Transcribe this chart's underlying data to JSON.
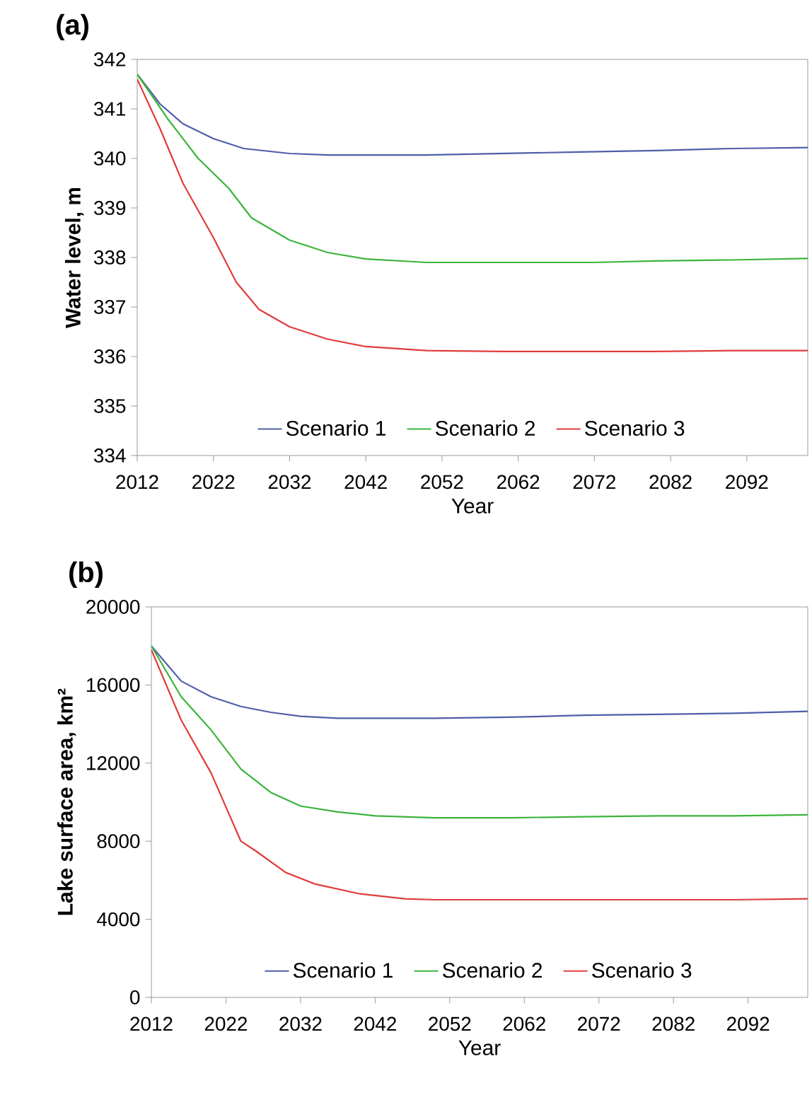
{
  "chart_data": [
    {
      "type": "line",
      "title": "(a)",
      "xlabel": "Year",
      "ylabel": "Water level, m",
      "xlim": [
        2012,
        2100
      ],
      "xticks": [
        2012,
        2022,
        2032,
        2042,
        2052,
        2062,
        2072,
        2082,
        2092
      ],
      "ylim": [
        334,
        342
      ],
      "yticks": [
        334,
        335,
        336,
        337,
        338,
        339,
        340,
        341,
        342
      ],
      "legend": "bottom",
      "grid": false,
      "series": [
        {
          "name": "Scenario 1",
          "color": "#4f5ea8",
          "x": [
            2012,
            2015,
            2018,
            2022,
            2026,
            2032,
            2037,
            2050,
            2060,
            2070,
            2080,
            2090,
            2100
          ],
          "values": [
            341.7,
            341.1,
            340.7,
            340.4,
            340.2,
            340.1,
            340.07,
            340.07,
            340.1,
            340.13,
            340.16,
            340.2,
            340.22
          ]
        },
        {
          "name": "Scenario 2",
          "color": "#3cb43c",
          "x": [
            2012,
            2016,
            2020,
            2024,
            2027,
            2032,
            2037,
            2042,
            2050,
            2060,
            2072,
            2080,
            2090,
            2100
          ],
          "values": [
            341.7,
            340.8,
            340.0,
            339.4,
            338.8,
            338.35,
            338.1,
            337.97,
            337.9,
            337.9,
            337.9,
            337.93,
            337.95,
            337.98
          ]
        },
        {
          "name": "Scenario 3",
          "color": "#e03c3c",
          "x": [
            2012,
            2015,
            2018,
            2022,
            2025,
            2028,
            2032,
            2037,
            2042,
            2050,
            2060,
            2080,
            2090,
            2100
          ],
          "values": [
            341.6,
            340.6,
            339.5,
            338.4,
            337.5,
            336.95,
            336.6,
            336.35,
            336.2,
            336.12,
            336.1,
            336.1,
            336.12,
            336.12
          ]
        }
      ]
    },
    {
      "type": "line",
      "title": "(b)",
      "xlabel": "Year",
      "ylabel": "Lake surface area, km²",
      "xlim": [
        2012,
        2100
      ],
      "xticks": [
        2012,
        2022,
        2032,
        2042,
        2052,
        2062,
        2072,
        2082,
        2092
      ],
      "ylim": [
        0,
        20000
      ],
      "yticks": [
        0,
        4000,
        8000,
        12000,
        16000,
        20000
      ],
      "legend": "bottom",
      "grid": false,
      "series": [
        {
          "name": "Scenario 1",
          "color": "#4f5ea8",
          "x": [
            2012,
            2016,
            2020,
            2024,
            2028,
            2032,
            2037,
            2050,
            2060,
            2070,
            2080,
            2090,
            2100
          ],
          "values": [
            18000,
            16200,
            15400,
            14900,
            14600,
            14400,
            14300,
            14300,
            14350,
            14450,
            14500,
            14550,
            14650
          ]
        },
        {
          "name": "Scenario 2",
          "color": "#3cb43c",
          "x": [
            2012,
            2016,
            2020,
            2024,
            2028,
            2032,
            2037,
            2042,
            2050,
            2060,
            2070,
            2080,
            2090,
            2100
          ],
          "values": [
            18000,
            15400,
            13700,
            11700,
            10500,
            9800,
            9500,
            9300,
            9200,
            9200,
            9250,
            9300,
            9300,
            9350
          ]
        },
        {
          "name": "Scenario 3",
          "color": "#e03c3c",
          "x": [
            2012,
            2016,
            2020,
            2024,
            2026,
            2030,
            2034,
            2040,
            2046,
            2050,
            2060,
            2080,
            2090,
            2100
          ],
          "values": [
            17800,
            14200,
            11500,
            8000,
            7500,
            6400,
            5800,
            5300,
            5050,
            5000,
            5000,
            5000,
            5000,
            5050
          ]
        }
      ]
    }
  ]
}
